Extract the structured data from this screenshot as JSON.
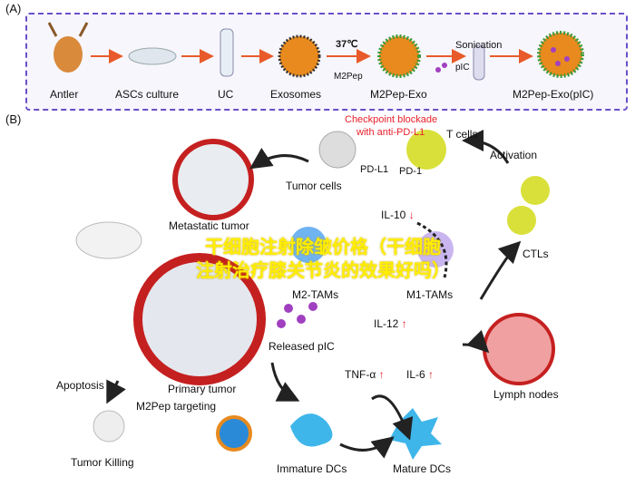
{
  "panel_a": {
    "label": "(A)",
    "steps": [
      "Antler",
      "ASCs culture",
      "UC",
      "Exosomes",
      "M2Pep-Exo",
      "M2Pep-Exo(pIC)"
    ],
    "temp": "37℃",
    "m2pep": "M2Pep",
    "sonication": "Sonication",
    "pic": "pIC"
  },
  "panel_b": {
    "label": "(B)",
    "checkpoint": "Checkpoint blockade",
    "checkpoint2": "with anti-PD-L1",
    "t_cells": "T cells",
    "pd_l1": "PD-L1",
    "pd_1": "PD-1",
    "tumor_cells": "Tumor cells",
    "activation": "Activation",
    "metastatic": "Metastatic tumor",
    "il10": "IL-10",
    "m2_tams": "M2-TAMs",
    "m1_tams": "M1-TAMs",
    "ctls": "CTLs",
    "il12": "IL-12",
    "released_pic": "Released pIC",
    "tnf": "TNF-α",
    "il6": "IL-6",
    "primary": "Primary tumor",
    "apoptosis": "Apoptosis",
    "targeting": "M2Pep targeting",
    "lymph": "Lymph nodes",
    "tumor_killing": "Tumor Killing",
    "immature": "Immature DCs",
    "mature": "Mature DCs",
    "down_arrow": "↓",
    "up_arrow": "↑"
  },
  "watermark": {
    "line1": "干细胞注射除皱价格（干细胞",
    "line2": "注射治疗膝关节炎的效果好吗）"
  },
  "colors": {
    "frame": "#6b4fc9",
    "red": "#e8202a",
    "exosome": "#e88a1e",
    "tcell": "#d9e03a",
    "dc": "#3fb6ea"
  }
}
